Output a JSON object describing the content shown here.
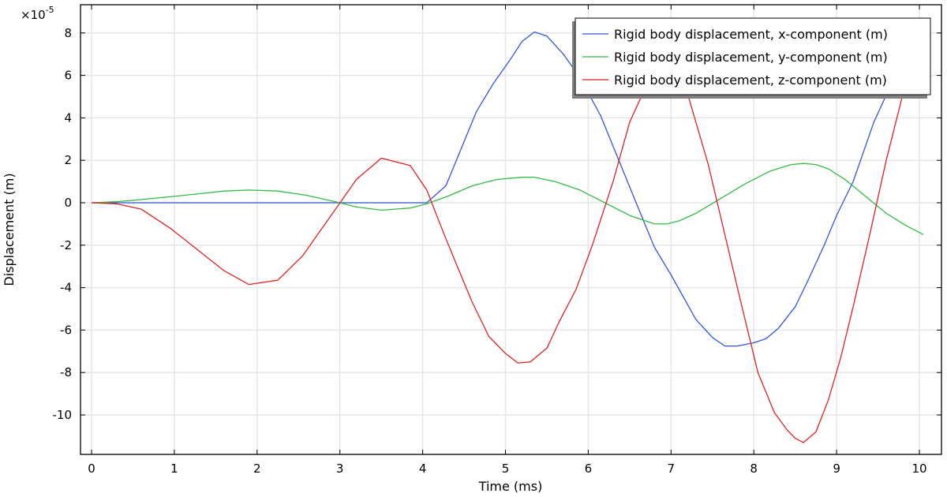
{
  "chart_data": {
    "type": "line",
    "title": "",
    "xlabel": "Time (ms)",
    "ylabel": "Displacement (m)",
    "y_multiplier_label": "×10",
    "y_multiplier_exponent": "-5",
    "xlim": [
      -0.13,
      10.27
    ],
    "ylim": [
      -11.8,
      9.3
    ],
    "grid": true,
    "legend_position": "upper right",
    "x_ticks": [
      0,
      1,
      2,
      3,
      4,
      5,
      6,
      7,
      8,
      9,
      10
    ],
    "y_ticks": [
      -10,
      -8,
      -6,
      -4,
      -2,
      0,
      2,
      4,
      6,
      8
    ],
    "series": [
      {
        "name": "Rigid body displacement, x-component (m)",
        "color": "#3355dd",
        "x": [
          0,
          0.3,
          1,
          2,
          3,
          4.05,
          4.28,
          4.65,
          4.85,
          5.05,
          5.2,
          5.35,
          5.5,
          5.7,
          5.9,
          6.15,
          6.4,
          6.6,
          6.8,
          7.0,
          7.3,
          7.5,
          7.65,
          7.8,
          8.0,
          8.15,
          8.3,
          8.5,
          8.65,
          8.85,
          9.0,
          9.2,
          9.45,
          9.65,
          10.05
        ],
        "values": [
          0,
          0,
          0,
          0,
          0,
          0,
          0.8,
          4.3,
          5.6,
          6.7,
          7.6,
          8.05,
          7.85,
          7.0,
          5.9,
          4.1,
          1.7,
          -0.2,
          -2.1,
          -3.4,
          -5.5,
          -6.35,
          -6.75,
          -6.75,
          -6.6,
          -6.4,
          -5.9,
          -4.9,
          -3.7,
          -2.0,
          -0.6,
          1.0,
          3.8,
          5.5,
          8.3
        ]
      },
      {
        "name": "Rigid body displacement, y-component (m)",
        "color": "#33bb44",
        "x": [
          0,
          0.3,
          0.6,
          1.0,
          1.6,
          1.9,
          2.25,
          2.6,
          3.0,
          3.2,
          3.5,
          3.85,
          4.05,
          4.3,
          4.6,
          4.9,
          5.2,
          5.35,
          5.6,
          5.9,
          6.2,
          6.5,
          6.8,
          6.95,
          7.1,
          7.3,
          7.6,
          7.9,
          8.2,
          8.45,
          8.6,
          8.75,
          8.9,
          9.1,
          9.35,
          9.6,
          9.85,
          10.05
        ],
        "values": [
          0,
          0.05,
          0.15,
          0.3,
          0.55,
          0.6,
          0.55,
          0.35,
          0.0,
          -0.2,
          -0.35,
          -0.25,
          -0.05,
          0.3,
          0.8,
          1.1,
          1.2,
          1.2,
          1.0,
          0.6,
          0.0,
          -0.6,
          -1.0,
          -1.0,
          -0.85,
          -0.5,
          0.2,
          0.9,
          1.5,
          1.8,
          1.85,
          1.8,
          1.6,
          1.1,
          0.3,
          -0.5,
          -1.1,
          -1.5
        ]
      },
      {
        "name": "Rigid body displacement, z-component (m)",
        "color": "#dd2222",
        "x": [
          0,
          0.3,
          0.6,
          0.95,
          1.6,
          1.9,
          2.25,
          2.55,
          3.2,
          3.5,
          3.85,
          4.05,
          4.25,
          4.45,
          4.6,
          4.8,
          5.0,
          5.15,
          5.3,
          5.5,
          5.65,
          5.85,
          6.05,
          6.3,
          6.5,
          6.7,
          7.0,
          7.15,
          7.3,
          7.45,
          7.65,
          7.85,
          8.05,
          8.25,
          8.4,
          8.5,
          8.6,
          8.75,
          8.9,
          9.05,
          9.2,
          9.4,
          9.6,
          9.8,
          10.05
        ],
        "values": [
          0,
          -0.05,
          -0.3,
          -1.2,
          -3.2,
          -3.85,
          -3.65,
          -2.5,
          1.1,
          2.1,
          1.75,
          0.6,
          -1.4,
          -3.3,
          -4.7,
          -6.3,
          -7.1,
          -7.55,
          -7.5,
          -6.85,
          -5.6,
          -4.1,
          -2.0,
          1.0,
          3.8,
          5.5,
          7.0,
          5.8,
          3.8,
          1.8,
          -1.5,
          -4.8,
          -8.0,
          -9.9,
          -10.7,
          -11.1,
          -11.3,
          -10.8,
          -9.3,
          -7.3,
          -4.9,
          -1.5,
          2.0,
          5.1,
          8.7
        ]
      }
    ]
  }
}
